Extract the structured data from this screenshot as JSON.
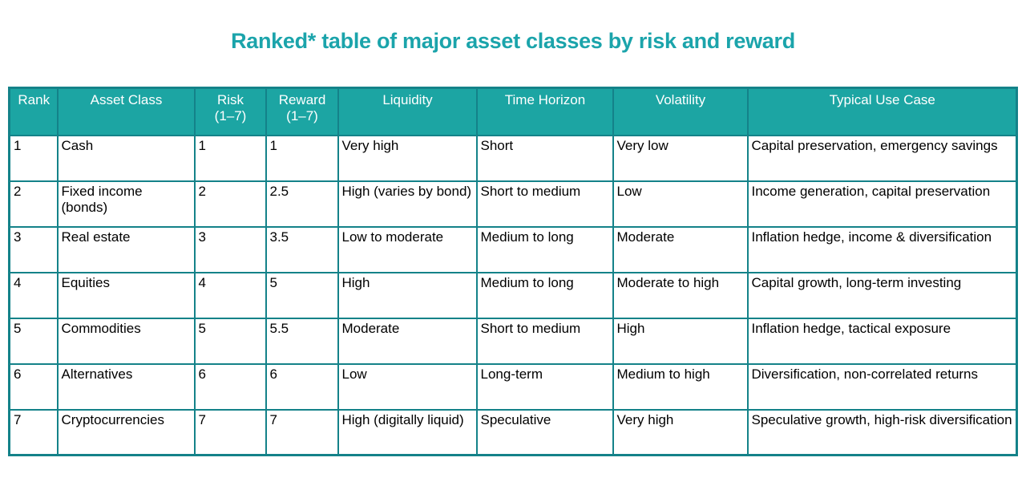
{
  "title": "Ranked* table of major asset classes by risk and reward",
  "colors": {
    "header_fill": "#1CA5A3",
    "border": "#148289",
    "title_text": "#1BA4AB",
    "header_text": "#FFFFFF",
    "body_text": "#000000"
  },
  "chart_data": {
    "type": "table",
    "title": "Ranked* table of major asset classes by risk and reward",
    "columns": [
      "Rank",
      "Asset Class",
      "Risk\n(1–7)",
      "Reward\n(1–7)",
      "Liquidity",
      "Time Horizon",
      "Volatility",
      "Typical Use Case"
    ],
    "rows": [
      [
        "1",
        "Cash",
        "1",
        "1",
        "Very high",
        "Short",
        "Very low",
        "Capital preservation, emergency savings"
      ],
      [
        "2",
        "Fixed income (bonds)",
        "2",
        "2.5",
        "High (varies by bond)",
        "Short to medium",
        "Low",
        "Income generation, capital preservation"
      ],
      [
        "3",
        "Real estate",
        "3",
        "3.5",
        "Low to moderate",
        "Medium to long",
        "Moderate",
        "Inflation hedge, income & diversification"
      ],
      [
        "4",
        "Equities",
        "4",
        "5",
        "High",
        "Medium to long",
        "Moderate to high",
        "Capital growth, long-term investing"
      ],
      [
        "5",
        "Commodities",
        "5",
        "5.5",
        "Moderate",
        "Short to medium",
        "High",
        "Inflation hedge, tactical exposure"
      ],
      [
        "6",
        "Alternatives",
        "6",
        "6",
        "Low",
        "Long-term",
        "Medium to high",
        "Diversification, non-correlated returns"
      ],
      [
        "7",
        "Cryptocurrencies",
        "7",
        "7",
        "High (digitally liquid)",
        "Speculative",
        "Very high",
        "Speculative growth, high-risk diversification"
      ]
    ]
  }
}
